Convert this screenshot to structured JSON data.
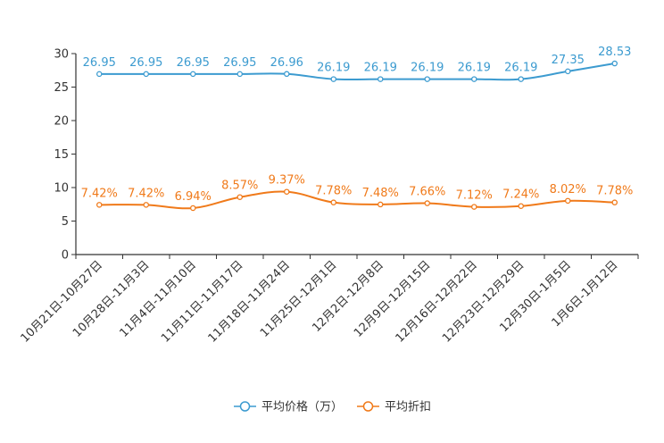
{
  "chart_data": {
    "type": "line",
    "title": "",
    "xlabel": "",
    "ylabel": "",
    "ylim": [
      0,
      30
    ],
    "yticks": [
      0,
      5,
      10,
      15,
      20,
      25,
      30
    ],
    "grid": false,
    "legend_position": "bottom",
    "categories": [
      "10月21日-10月27日",
      "10月28日-11月3日",
      "11月4日-11月10日",
      "11月11日-11月17日",
      "11月18日-11月24日",
      "11月25日-12月1日",
      "12月2日-12月8日",
      "12月9日-12月15日",
      "12月16日-12月22日",
      "12月23日-12月29日",
      "12月30日-1月5日",
      "1月6日-1月12日"
    ],
    "series": [
      {
        "name": "平均价格（万）",
        "color": "#3c9bd0",
        "values": [
          26.95,
          26.95,
          26.95,
          26.95,
          26.96,
          26.19,
          26.19,
          26.19,
          26.19,
          26.19,
          27.35,
          28.53
        ],
        "labels": [
          "26.95",
          "26.95",
          "26.95",
          "26.95",
          "26.96",
          "26.19",
          "26.19",
          "26.19",
          "26.19",
          "26.19",
          "27.35",
          "28.53"
        ]
      },
      {
        "name": "平均折扣",
        "color": "#f07a1a",
        "values": [
          7.42,
          7.42,
          6.94,
          8.57,
          9.37,
          7.78,
          7.48,
          7.66,
          7.12,
          7.24,
          8.02,
          7.78
        ],
        "labels": [
          "7.42%",
          "7.42%",
          "6.94%",
          "8.57%",
          "9.37%",
          "7.78%",
          "7.48%",
          "7.66%",
          "7.12%",
          "7.24%",
          "8.02%",
          "7.78%"
        ]
      }
    ]
  }
}
